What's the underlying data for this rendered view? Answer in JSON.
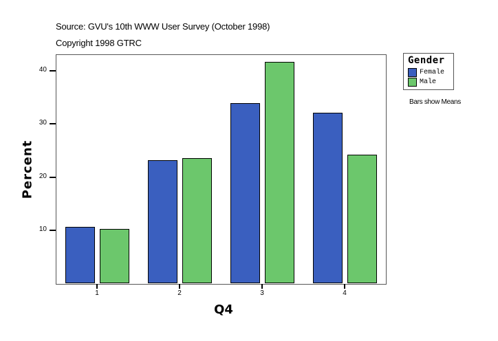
{
  "header": {
    "source": "Source: GVU's 10th WWW User Survey (October 1998)",
    "copyright": "Copyright 1998 GTRC"
  },
  "legend": {
    "title": "Gender",
    "items": [
      {
        "label": "Female",
        "color": "#3a5fbf"
      },
      {
        "label": "Male",
        "color": "#6cc76c"
      }
    ]
  },
  "note": "Bars show Means",
  "axes": {
    "xlabel": "Q4",
    "ylabel": "Percent",
    "yticks": [
      "10",
      "20",
      "30",
      "40"
    ],
    "xticks": [
      "1",
      "2",
      "3",
      "4"
    ]
  },
  "chart_data": {
    "type": "bar",
    "title": "Source: GVU's 10th WWW User Survey (October 1998)",
    "subtitle": "Copyright 1998 GTRC",
    "categories": [
      "1",
      "2",
      "3",
      "4"
    ],
    "series": [
      {
        "name": "Female",
        "color": "#3a5fbf",
        "values": [
          10.6,
          23.2,
          33.9,
          32.1
        ]
      },
      {
        "name": "Male",
        "color": "#6cc76c",
        "values": [
          10.3,
          23.6,
          41.6,
          24.2
        ]
      }
    ],
    "xlabel": "Q4",
    "ylabel": "Percent",
    "ylim": [
      0,
      43
    ],
    "yticks": [
      10,
      20,
      30,
      40
    ],
    "grid": false,
    "legend_title": "Gender",
    "legend_position": "right",
    "annotations": [
      "Bars show Means"
    ]
  }
}
